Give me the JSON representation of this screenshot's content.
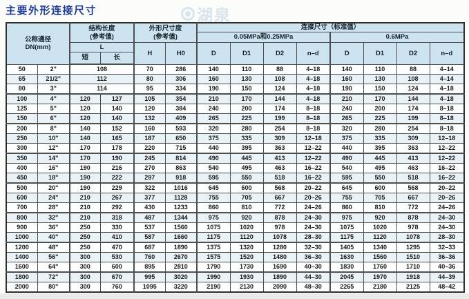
{
  "page": {
    "title": "主要外形连接尺寸",
    "watermark": "湖泉"
  },
  "table": {
    "header": {
      "dn": "公称通径\nDN(mm)",
      "structure": "结构长度\n(参考值)",
      "l": "L",
      "short": "短",
      "long": "长",
      "outline": "外形尺寸度\n(参考值)",
      "h": "H",
      "h0": "H0",
      "connection": "连接尺寸（标准值）",
      "group1": "0.05MPa和0.25MPa",
      "group2": "0.6MPa",
      "d": "D",
      "d1": "D1",
      "d2": "D2",
      "nd": "n–d"
    },
    "rows": [
      [
        "50",
        "2\"",
        "108",
        null,
        "70",
        "286",
        "140",
        "110",
        "88",
        "4–18",
        "140",
        "110",
        "88",
        "4–14"
      ],
      [
        "65",
        "21/2\"",
        "112",
        null,
        "80",
        "306",
        "160",
        "130",
        "108",
        "4–18",
        "160",
        "130",
        "108",
        "4–14"
      ],
      [
        "80",
        "3\"",
        "114",
        null,
        "95",
        "334",
        "190",
        "150",
        "124",
        "4–18",
        "190",
        "150",
        "124",
        "4–18"
      ],
      [
        "100",
        "4\"",
        "120",
        "127",
        "105",
        "354",
        "210",
        "170",
        "144",
        "4–18",
        "210",
        "170",
        "144",
        "4–18"
      ],
      [
        "125",
        "5\"",
        "120",
        "140",
        "120",
        "384",
        "240",
        "200",
        "174",
        "8–18",
        "240",
        "200",
        "174",
        "8–18"
      ],
      [
        "150",
        "6\"",
        "120",
        "140",
        "132",
        "409",
        "265",
        "225",
        "199",
        "8–18",
        "265",
        "225",
        "199",
        "8–18"
      ],
      [
        "200",
        "8\"",
        "140",
        "152",
        "160",
        "593",
        "320",
        "280",
        "254",
        "8–18",
        "320",
        "280",
        "254",
        "8–18"
      ],
      [
        "250",
        "10\"",
        "140",
        "165",
        "187",
        "650",
        "375",
        "335",
        "309",
        "12–18",
        "375",
        "335",
        "309",
        "12–18"
      ],
      [
        "300",
        "12\"",
        "170",
        "178",
        "220",
        "715",
        "440",
        "395",
        "363",
        "12–22",
        "440",
        "395",
        "363",
        "12–22"
      ],
      [
        "350",
        "14\"",
        "170",
        "190",
        "245",
        "814",
        "490",
        "445",
        "413",
        "12–22",
        "490",
        "445",
        "413",
        "12–22"
      ],
      [
        "400",
        "16\"",
        "190",
        "216",
        "270",
        "863",
        "540",
        "495",
        "463",
        "16–22",
        "540",
        "495",
        "463",
        "16–22"
      ],
      [
        "450",
        "18\"",
        "190",
        "222",
        "297",
        "918",
        "595",
        "550",
        "518",
        "16–22",
        "595",
        "550",
        "518",
        "16–22"
      ],
      [
        "500",
        "20\"",
        "190",
        "229",
        "322",
        "1016",
        "645",
        "600",
        "568",
        "20–22",
        "645",
        "600",
        "568",
        "20–22"
      ],
      [
        "600",
        "24\"",
        "210",
        "267",
        "377",
        "1128",
        "755",
        "705",
        "667",
        "20–26",
        "755",
        "705",
        "667",
        "20–26"
      ],
      [
        "700",
        "28\"",
        "210",
        "292",
        "430",
        "1233",
        "860",
        "810",
        "772",
        "24–26",
        "860",
        "810",
        "772",
        "24–26"
      ],
      [
        "800",
        "32\"",
        "210",
        "318",
        "487",
        "1344",
        "975",
        "920",
        "878",
        "24–30",
        "975",
        "920",
        "878",
        "24–30"
      ],
      [
        "900",
        "36\"",
        "250",
        "330",
        "537",
        "1560",
        "1075",
        "1020",
        "978",
        "24–30",
        "1075",
        "1020",
        "978",
        "24–30"
      ],
      [
        "1000",
        "40\"",
        "250",
        "410",
        "587",
        "1660",
        "1175",
        "1120",
        "1078",
        "28–30",
        "1175",
        "1120",
        "1078",
        "28–30"
      ],
      [
        "1200",
        "48\"",
        "250",
        "470",
        "687",
        "1890",
        "1375",
        "1320",
        "1280",
        "32–30",
        "1405",
        "1340",
        "1295",
        "32–33"
      ],
      [
        "1400",
        "56\"",
        "300",
        "530",
        "760",
        "2670",
        "1575",
        "1520",
        "1480",
        "36–30",
        "1630",
        "1560",
        "1510",
        "36–36"
      ],
      [
        "1600",
        "64\"",
        "300",
        "600",
        "895",
        "2810",
        "1790",
        "1730",
        "1690",
        "40–30",
        "1830",
        "1760",
        "1710",
        "40–36"
      ],
      [
        "1800",
        "72\"",
        "300",
        "670",
        "995",
        "3020",
        "1990",
        "1930",
        "1890",
        "44–30",
        "2045",
        "1970",
        "1918",
        "44–39"
      ],
      [
        "2000",
        "80\"",
        "300",
        "760",
        "1095",
        "3220",
        "2190",
        "2130",
        "2090",
        "48–30",
        "2265",
        "2180",
        "2125",
        "48–42"
      ]
    ]
  }
}
